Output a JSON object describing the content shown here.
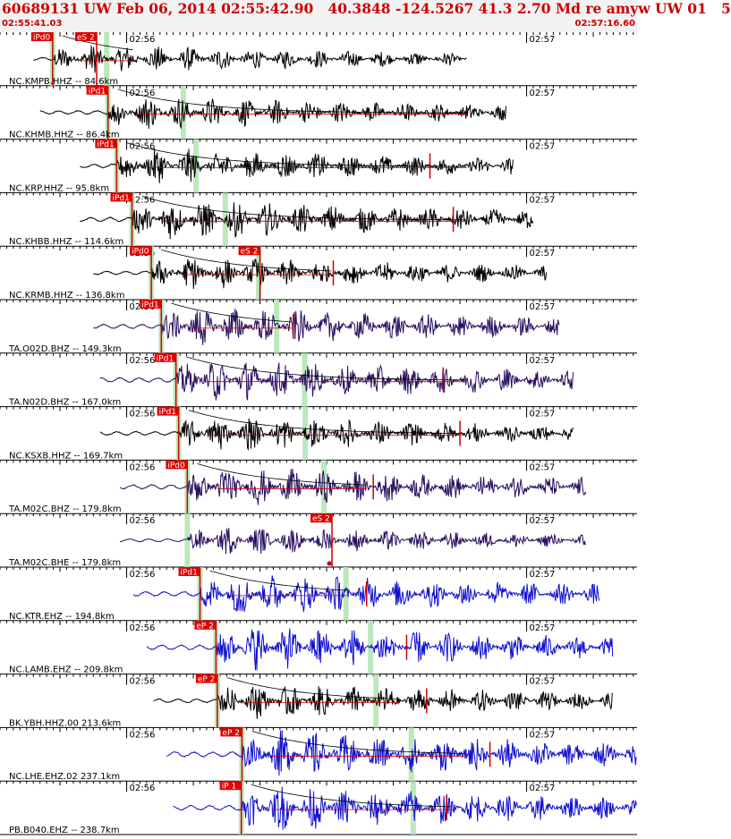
{
  "header": {
    "title": "60689131 UW Feb 06, 2014 02:55:42.90   40.3848 -124.5267 41.3 2.70 Md re amyw UW 01   5",
    "start_time": "02:55:41.03",
    "end_time": "02:57:16.60"
  },
  "colors": {
    "pick_bg": "#e00000",
    "pick_text": "#ffffff",
    "pick_line": "#cc0000",
    "window": "#b5e6b5",
    "grid": "#000000",
    "coda": "#000000"
  },
  "chart_data": {
    "type": "line",
    "title": "",
    "xlabel": "",
    "ylabel": "",
    "x_range_s": [
      0,
      95.57
    ],
    "minute_ticks": [
      {
        "label": "02:56",
        "t": 19.0
      },
      {
        "label": "02:57",
        "t": 79.0
      }
    ],
    "traces": [
      {
        "label": "NC.KMPB.HHZ -- 84.6km",
        "color": "#000000",
        "start": 5.0,
        "end": 70.0,
        "amp": 0.6,
        "p_t": 7.9,
        "p_label": "iPd0",
        "s_t": 14.5,
        "s_label": "eS 2",
        "window_t": 16.0,
        "coda_end": 20.0,
        "p_marker": 0.0,
        "s_marker": 0.0
      },
      {
        "label": "NC.KHMB.HHZ -- 86.4km",
        "color": "#000000",
        "start": 6.0,
        "end": 76.0,
        "amp": 0.7,
        "p_t": 16.2,
        "p_label": "iPd1",
        "s_t": 0,
        "s_label": "",
        "window_t": 27.5,
        "coda_end": 70.0,
        "p_marker": 0.0,
        "s_marker": 0.0
      },
      {
        "label": "NC.KRP.HHZ -- 95.8km",
        "color": "#000000",
        "start": 12.0,
        "end": 77.0,
        "amp": 0.75,
        "p_t": 17.5,
        "p_label": "iPd1",
        "s_t": 0,
        "s_label": "",
        "window_t": 29.4,
        "coda_end": 70.0,
        "p_marker": 64.5,
        "s_marker": 0.0
      },
      {
        "label": "NC.KHBB.HHZ -- 114.6km",
        "color": "#000000",
        "start": 12.0,
        "end": 80.0,
        "amp": 0.85,
        "p_t": 19.8,
        "p_label": "iPd1",
        "s_t": 0,
        "s_label": "",
        "window_t": 33.8,
        "coda_end": 70.0,
        "p_marker": 68.0,
        "s_marker": 0.0
      },
      {
        "label": "NC.KRMB.HHZ -- 136.8km",
        "color": "#000000",
        "start": 14.0,
        "end": 82.0,
        "amp": 0.7,
        "p_t": 22.7,
        "p_label": "iPd0",
        "s_t": 39.0,
        "s_label": "eS 2",
        "window_t": 38.8,
        "coda_end": 50.0,
        "p_marker": 50.0,
        "s_marker": 0.0
      },
      {
        "label": "TA.O02D.BHZ -- 149.3km",
        "color": "#2a1060",
        "start": 14.0,
        "end": 84.0,
        "amp": 0.85,
        "p_t": 24.2,
        "p_label": "iPd1",
        "s_t": 0,
        "s_label": "",
        "window_t": 41.5,
        "coda_end": 44.0,
        "p_marker": 44.0,
        "s_marker": 0.0
      },
      {
        "label": "TA.N02D.BHZ -- 167.0km",
        "color": "#2a1060",
        "start": 15.0,
        "end": 86.0,
        "amp": 0.9,
        "p_t": 26.4,
        "p_label": "iPd1",
        "s_t": 0,
        "s_label": "",
        "window_t": 45.7,
        "coda_end": 70.0,
        "p_marker": 66.5,
        "s_marker": 0.0
      },
      {
        "label": "NC.KSXB.HHZ -- 169.7km",
        "color": "#000000",
        "start": 15.0,
        "end": 86.0,
        "amp": 0.75,
        "p_t": 26.8,
        "p_label": "iPd1",
        "s_t": 0,
        "s_label": "",
        "window_t": 45.8,
        "coda_end": 70.0,
        "p_marker": 69.0,
        "s_marker": 0.0
      },
      {
        "label": "TA.M02C.BHZ -- 179.8km",
        "color": "#2a1060",
        "start": 18.0,
        "end": 88.0,
        "amp": 0.85,
        "p_t": 28.1,
        "p_label": "iPd0",
        "s_t": 0,
        "s_label": "",
        "window_t": 48.6,
        "coda_end": 55.0,
        "p_marker": 56.0,
        "s_marker": 0.0
      },
      {
        "label": "TA.M02C.BHE -- 179.8km",
        "color": "#2a1060",
        "start": 18.0,
        "end": 88.0,
        "amp": 0.6,
        "p_t": 28.1,
        "p_label": "",
        "s_t": 49.8,
        "s_label": "eS 2",
        "window_t": 28.1,
        "coda_end": 0,
        "p_marker": 0.0,
        "s_marker": 49.4
      },
      {
        "label": "NC.KTR.EHZ -- 194.8km",
        "color": "#1010d0",
        "start": 20.0,
        "end": 90.0,
        "amp": 0.9,
        "p_t": 30.0,
        "p_label": "iPd1",
        "s_t": 0,
        "s_label": "",
        "window_t": 51.9,
        "coda_end": 52.0,
        "p_marker": 55.0,
        "s_marker": 0.0
      },
      {
        "label": "NC.LAMB.EHZ -- 209.8km",
        "color": "#1010d0",
        "start": 22.0,
        "end": 92.0,
        "amp": 0.95,
        "p_t": 32.4,
        "p_label": "eP 2",
        "s_t": 0,
        "s_label": "",
        "window_t": 55.6,
        "coda_end": 0,
        "p_marker": 61.0,
        "s_marker": 0.0
      },
      {
        "label": "BK.YBH.HHZ.00 213.6km",
        "color": "#000000",
        "start": 23.0,
        "end": 92.0,
        "amp": 0.75,
        "p_t": 32.6,
        "p_label": "eP 2",
        "s_t": 0,
        "s_label": "",
        "window_t": 56.4,
        "coda_end": 60.0,
        "p_marker": 64.0,
        "s_marker": 0.0
      },
      {
        "label": "NC.LHE.EHZ.02 237.1km",
        "color": "#1010d0",
        "start": 25.0,
        "end": 95.5,
        "amp": 1.0,
        "p_t": 36.3,
        "p_label": "eP 2",
        "s_t": 0,
        "s_label": "",
        "window_t": 61.7,
        "coda_end": 70.0,
        "p_marker": 73.5,
        "s_marker": 0.0
      },
      {
        "label": "PB.B040.EHZ -- 238.7km",
        "color": "#1010d0",
        "start": 26.0,
        "end": 95.5,
        "amp": 0.95,
        "p_t": 36.2,
        "p_label": "iP 1",
        "s_t": 0,
        "s_label": "",
        "window_t": 62.0,
        "coda_end": 68.0,
        "p_marker": 67.0,
        "s_marker": 0.0
      }
    ]
  }
}
